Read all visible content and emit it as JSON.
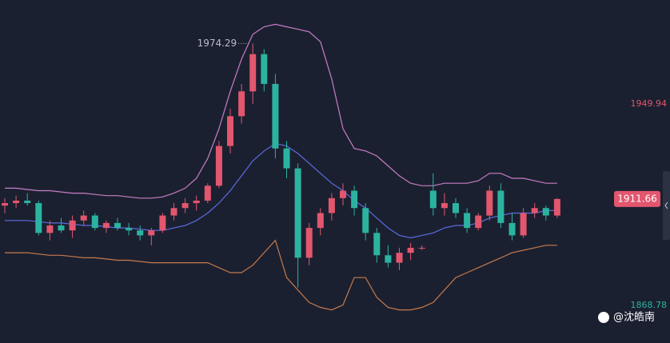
{
  "chart_data": {
    "type": "candlestick",
    "ylim": [
      1853.66,
      1991.8
    ],
    "yticks": [
      1868.78,
      1949.94
    ],
    "up_color": "#e2566e",
    "down_color": "#2bb3a0",
    "band_colors": {
      "upper": "#c77dc4",
      "mid": "#5a6ce0",
      "lower": "#c47a4c"
    },
    "open": [
      1909,
      1910,
      1911,
      1910,
      1898,
      1901,
      1899,
      1903,
      1905,
      1900,
      1902,
      1900,
      1899,
      1897,
      1899,
      1905,
      1908,
      1910,
      1911,
      1917,
      1933,
      1945,
      1955,
      1970,
      1958,
      1932,
      1924,
      1888,
      1900,
      1906,
      1912,
      1915,
      1908,
      1898,
      1889,
      1886,
      1890,
      1892,
      1915,
      1908,
      1910,
      1906,
      1900,
      1905,
      1915,
      1902,
      1897,
      1906,
      1908,
      1905
    ],
    "high": [
      1912,
      1913,
      1914,
      1911,
      1903,
      1904,
      1905,
      1907,
      1906,
      1903,
      1904,
      1902,
      1901,
      1900,
      1906,
      1910,
      1912,
      1913,
      1918,
      1935,
      1948,
      1958,
      1974.29,
      1972,
      1962,
      1935,
      1926,
      1902,
      1908,
      1914,
      1918,
      1917,
      1910,
      1900,
      1893,
      1892,
      1894,
      1893,
      1922,
      1914,
      1912,
      1908,
      1906,
      1917,
      1918,
      1906,
      1908,
      1910,
      1909,
      1912
    ],
    "low": [
      1906,
      1908,
      1909,
      1897,
      1895,
      1898,
      1896,
      1901,
      1899,
      1898,
      1899,
      1897,
      1895,
      1893,
      1898,
      1903,
      1906,
      1907,
      1910,
      1916,
      1930,
      1942,
      1950,
      1955,
      1928,
      1920,
      1876,
      1885,
      1897,
      1903,
      1909,
      1905,
      1895,
      1886,
      1884,
      1883,
      1887,
      1891,
      1905,
      1905,
      1904,
      1898,
      1899,
      1903,
      1900,
      1895,
      1896,
      1904,
      1903,
      1904
    ],
    "close": [
      1910,
      1911,
      1910,
      1898,
      1901,
      1899,
      1903,
      1905,
      1900,
      1902,
      1900,
      1899,
      1897,
      1899,
      1905,
      1908,
      1910,
      1911,
      1917,
      1933,
      1945,
      1955,
      1970,
      1958,
      1932,
      1924,
      1888,
      1900,
      1906,
      1912,
      1915,
      1908,
      1898,
      1889,
      1886,
      1890,
      1892,
      1892,
      1908,
      1910,
      1906,
      1900,
      1905,
      1915,
      1902,
      1897,
      1906,
      1908,
      1905,
      1911.66
    ],
    "upper": [
      1916,
      1916,
      1915.5,
      1915,
      1915,
      1914.5,
      1914,
      1914,
      1913.5,
      1913,
      1913,
      1912.5,
      1912,
      1912,
      1912.5,
      1914,
      1916,
      1920,
      1928,
      1940,
      1955,
      1968,
      1978,
      1981,
      1982,
      1981,
      1980,
      1979,
      1975,
      1960,
      1940,
      1932,
      1931,
      1929,
      1925,
      1921,
      1918,
      1917,
      1917,
      1918,
      1918,
      1918,
      1919,
      1922,
      1922,
      1920,
      1920,
      1919,
      1918,
      1918
    ],
    "mid": [
      1903,
      1903,
      1903,
      1902.5,
      1902,
      1902,
      1901.5,
      1901,
      1901,
      1900.5,
      1900,
      1900,
      1899.5,
      1899,
      1899,
      1900,
      1901,
      1903,
      1906,
      1910,
      1915,
      1921,
      1927,
      1931,
      1934,
      1933,
      1930,
      1926,
      1922,
      1918,
      1915,
      1911,
      1908,
      1904,
      1900,
      1897,
      1896,
      1897,
      1898,
      1900,
      1901,
      1901,
      1902,
      1904,
      1905,
      1906,
      1906,
      1906,
      1907,
      1907
    ],
    "lower": [
      1890,
      1890,
      1890,
      1889.5,
      1889,
      1889,
      1888.5,
      1888,
      1888,
      1887.5,
      1887,
      1887,
      1886.5,
      1886,
      1886,
      1886,
      1886,
      1886,
      1886,
      1884,
      1882,
      1882,
      1885,
      1890,
      1895,
      1880,
      1875,
      1870,
      1868,
      1867,
      1869,
      1880,
      1880,
      1872,
      1868,
      1867,
      1867,
      1868,
      1870,
      1875,
      1880,
      1882,
      1884,
      1886,
      1888,
      1890,
      1891,
      1892,
      1893,
      1893
    ],
    "watermark": "@沈皓南"
  }
}
